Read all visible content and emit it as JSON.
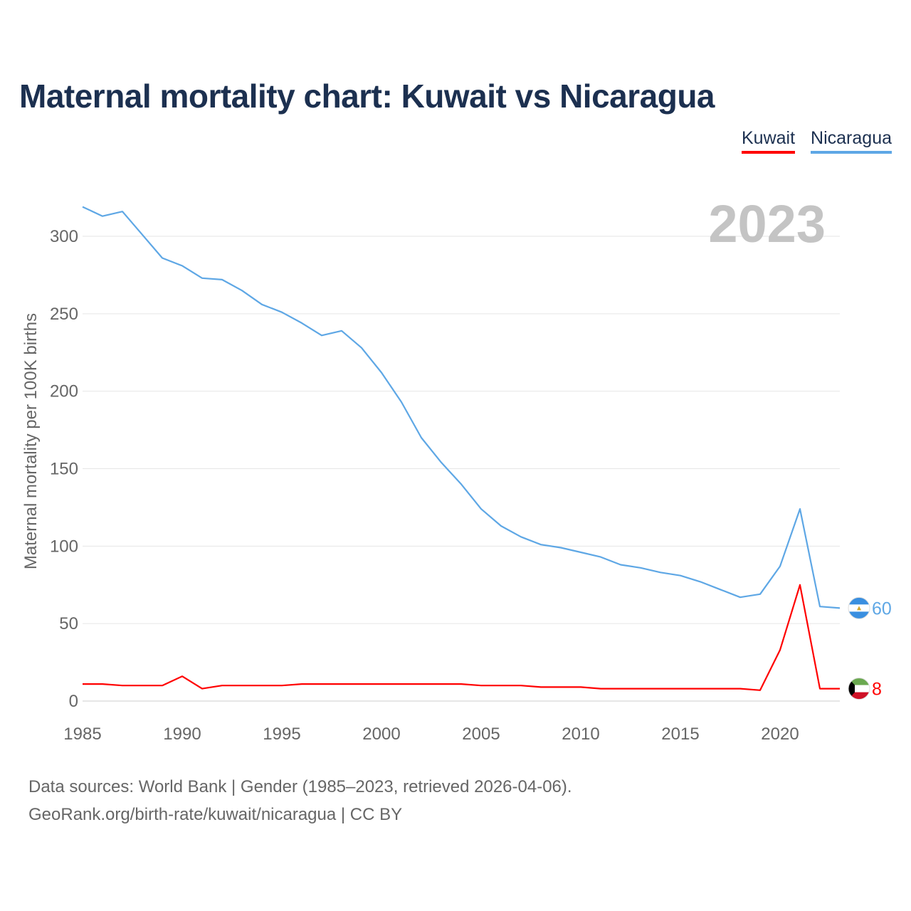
{
  "title": "Maternal mortality chart: Kuwait vs Nicaragua",
  "legend": [
    {
      "label": "Kuwait",
      "color": "#ff0000"
    },
    {
      "label": "Nicaragua",
      "color": "#5ea7e5"
    }
  ],
  "sources": {
    "line1": "Data sources: World Bank | Gender (1985–2023, retrieved 2026-04-06).",
    "line2": "GeoRank.org/birth-rate/kuwait/nicaragua | CC BY"
  },
  "chart_data": {
    "type": "line",
    "title": "Maternal mortality chart: Kuwait vs Nicaragua",
    "year_label": "2023",
    "xlabel": "",
    "ylabel": "Maternal mortality per 100K births",
    "xlim": [
      1985,
      2023
    ],
    "ylim": [
      0,
      320
    ],
    "x_ticks": [
      1985,
      1990,
      1995,
      2000,
      2005,
      2010,
      2015,
      2020
    ],
    "y_ticks": [
      0,
      50,
      100,
      150,
      200,
      250,
      300
    ],
    "grid": true,
    "x": [
      1985,
      1986,
      1987,
      1988,
      1989,
      1990,
      1991,
      1992,
      1993,
      1994,
      1995,
      1996,
      1997,
      1998,
      1999,
      2000,
      2001,
      2002,
      2003,
      2004,
      2005,
      2006,
      2007,
      2008,
      2009,
      2010,
      2011,
      2012,
      2013,
      2014,
      2015,
      2016,
      2017,
      2018,
      2019,
      2020,
      2021,
      2022,
      2023
    ],
    "series": [
      {
        "name": "Nicaragua",
        "color": "#5ea7e5",
        "end_label": "60",
        "values": [
          319,
          313,
          316,
          301,
          286,
          281,
          273,
          272,
          265,
          256,
          251,
          244,
          236,
          239,
          228,
          212,
          193,
          170,
          154,
          140,
          124,
          113,
          106,
          101,
          99,
          96,
          93,
          88,
          86,
          83,
          81,
          77,
          72,
          67,
          69,
          87,
          124,
          61,
          60
        ]
      },
      {
        "name": "Kuwait",
        "color": "#ff0000",
        "end_label": "8",
        "values": [
          11,
          11,
          10,
          10,
          10,
          16,
          8,
          10,
          10,
          10,
          10,
          11,
          11,
          11,
          11,
          11,
          11,
          11,
          11,
          11,
          10,
          10,
          10,
          9,
          9,
          9,
          8,
          8,
          8,
          8,
          8,
          8,
          8,
          8,
          7,
          33,
          75,
          8,
          8
        ]
      }
    ]
  }
}
